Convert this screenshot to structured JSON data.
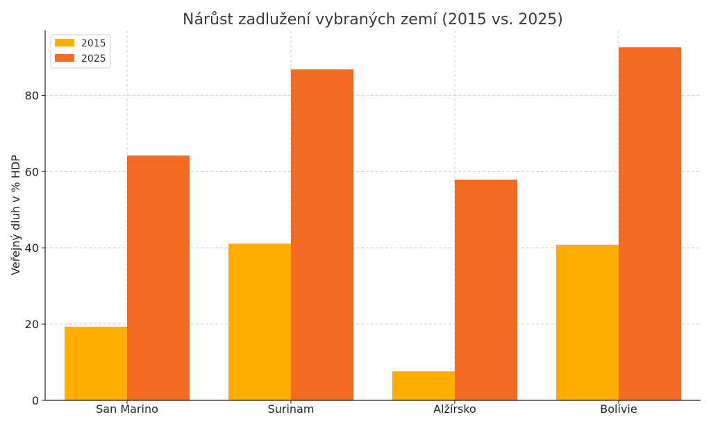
{
  "chart_data": {
    "type": "bar",
    "title": "Nárůst zadlužení vybraných zemí (2015 vs. 2025)",
    "xlabel": "",
    "ylabel": "Veřejný dluh v % HDP",
    "categories": [
      "San Marino",
      "Surinam",
      "Alžírsko",
      "Bolívie"
    ],
    "series": [
      {
        "name": "2015",
        "values": [
          19.3,
          41.1,
          7.6,
          40.8
        ],
        "color": "#ffae00"
      },
      {
        "name": "2025",
        "values": [
          64.2,
          86.8,
          57.9,
          92.6
        ],
        "color": "#f46a21"
      }
    ],
    "ylim": [
      0,
      97
    ],
    "yticks": [
      0,
      20,
      40,
      60,
      80
    ],
    "grid": true,
    "legend_position": "top-left"
  }
}
